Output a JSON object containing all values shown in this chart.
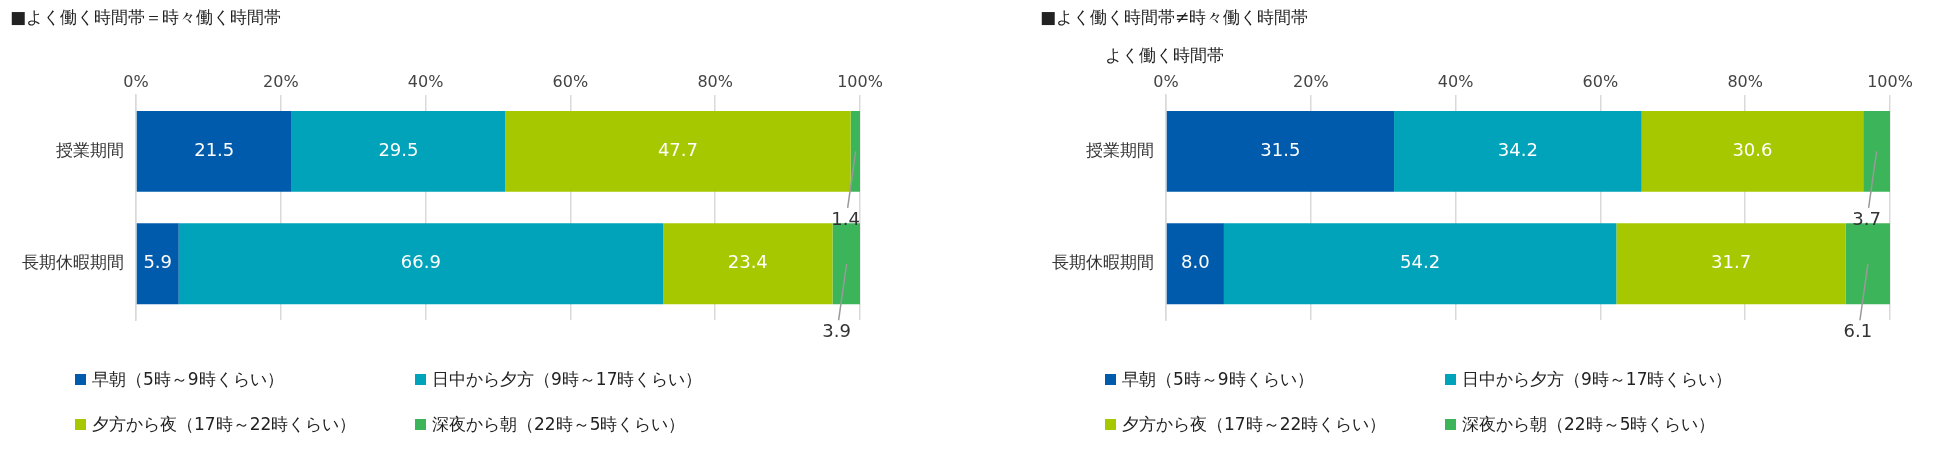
{
  "chart_data": [
    {
      "type": "bar",
      "title": "■よく働く時間帯＝時々働く時間帯",
      "orientation": "horizontal",
      "stacked": true,
      "categories": [
        "授業期間",
        "長期休暇期間"
      ],
      "series": [
        {
          "name": "早朝（5時～9時くらい）",
          "color": "#005bac",
          "values": [
            21.5,
            5.9
          ],
          "value_labels": [
            "21.5",
            "5.9"
          ]
        },
        {
          "name": "日中から夕方（9時～17時くらい）",
          "color": "#00a3b9",
          "values": [
            29.5,
            66.9
          ],
          "value_labels": [
            "29.5",
            "66.9"
          ]
        },
        {
          "name": "夕方から夜（17時～22時くらい）",
          "color": "#a6c800",
          "values": [
            47.7,
            23.4
          ],
          "value_labels": [
            "47.7",
            "23.4"
          ]
        },
        {
          "name": "深夜から朝（22時～5時くらい）",
          "color": "#3cb55a",
          "values": [
            1.4,
            3.9
          ],
          "value_labels": [
            "1.4",
            "3.9"
          ]
        }
      ],
      "xlim": [
        0,
        100
      ],
      "xticks": [
        {
          "value": 0,
          "label": "0%"
        },
        {
          "value": 20,
          "label": "20%"
        },
        {
          "value": 40,
          "label": "40%"
        },
        {
          "value": 60,
          "label": "60%"
        },
        {
          "value": 80,
          "label": "80%"
        },
        {
          "value": 100,
          "label": "100%"
        }
      ],
      "grid": "x",
      "legend": "bottom"
    },
    {
      "type": "bar",
      "title": "■よく働く時間帯≠時々働く時間帯",
      "subtitle": "よく働く時間帯",
      "orientation": "horizontal",
      "stacked": true,
      "categories": [
        "授業期間",
        "長期休暇期間"
      ],
      "series": [
        {
          "name": "早朝（5時～9時くらい）",
          "color": "#005bac",
          "values": [
            31.5,
            8.0
          ],
          "value_labels": [
            "31.5",
            "8.0"
          ]
        },
        {
          "name": "日中から夕方（9時～17時くらい）",
          "color": "#00a3b9",
          "values": [
            34.2,
            54.2
          ],
          "value_labels": [
            "34.2",
            "54.2"
          ]
        },
        {
          "name": "夕方から夜（17時～22時くらい）",
          "color": "#a6c800",
          "values": [
            30.6,
            31.7
          ],
          "value_labels": [
            "30.6",
            "31.7"
          ]
        },
        {
          "name": "深夜から朝（22時～5時くらい）",
          "color": "#3cb55a",
          "values": [
            3.7,
            6.1
          ],
          "value_labels": [
            "3.7",
            "6.1"
          ]
        }
      ],
      "xlim": [
        0,
        100
      ],
      "xticks": [
        {
          "value": 0,
          "label": "0%"
        },
        {
          "value": 20,
          "label": "20%"
        },
        {
          "value": 40,
          "label": "40%"
        },
        {
          "value": 60,
          "label": "60%"
        },
        {
          "value": 80,
          "label": "80%"
        },
        {
          "value": 100,
          "label": "100%"
        }
      ],
      "grid": "x",
      "legend": "bottom"
    }
  ]
}
